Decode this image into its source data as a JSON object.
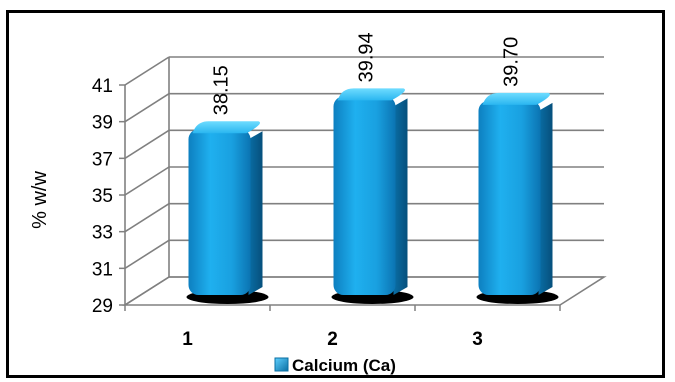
{
  "chart_data": {
    "type": "bar",
    "categories": [
      "1",
      "2",
      "3"
    ],
    "series": [
      {
        "name": "Calcium (Ca)",
        "values": [
          38.15,
          39.94,
          39.7
        ]
      }
    ],
    "data_labels": [
      "38.15",
      "39.94",
      "39.70"
    ],
    "ylabel": "% w/w",
    "xlabel": "",
    "title": "",
    "yticks": [
      29,
      31,
      33,
      35,
      37,
      39,
      41
    ],
    "ylim": [
      29,
      41
    ],
    "grid": true,
    "legend": "bottom",
    "bar_color": "#1aa3e0",
    "bar_dark": "#0a6fa3",
    "bar_light": "#5fd0ff"
  }
}
